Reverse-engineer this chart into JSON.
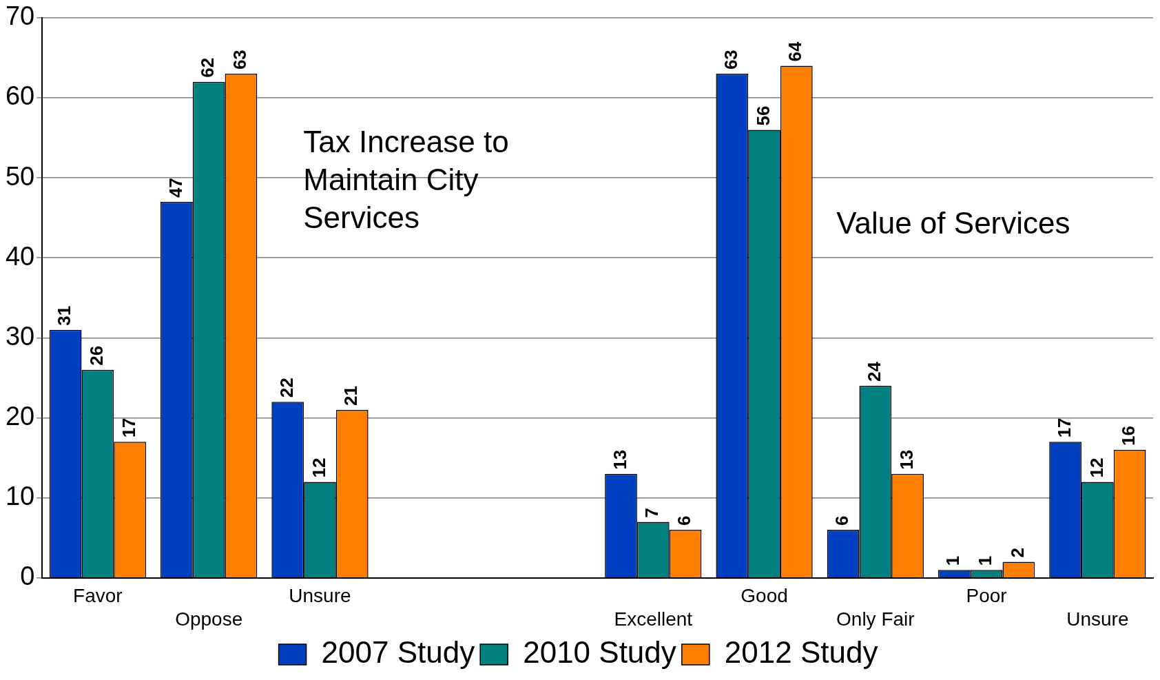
{
  "chart_data": {
    "type": "bar",
    "categories": [
      "Favor",
      "Oppose",
      "Unsure",
      null,
      null,
      "Excellent",
      "Good",
      "Only Fair",
      "Poor",
      "Unsure"
    ],
    "series": [
      {
        "name": "2007 Study",
        "color": "#0040c0",
        "values": [
          31,
          47,
          22,
          null,
          null,
          13,
          63,
          6,
          1,
          17
        ]
      },
      {
        "name": "2010 Study",
        "color": "#008080",
        "values": [
          26,
          62,
          12,
          null,
          null,
          7,
          56,
          24,
          1,
          12
        ]
      },
      {
        "name": "2012 Study",
        "color": "#ff8000",
        "values": [
          17,
          63,
          21,
          null,
          null,
          6,
          64,
          13,
          2,
          16
        ]
      }
    ],
    "ylim": [
      0,
      70
    ],
    "yticks": [
      0,
      10,
      20,
      30,
      40,
      50,
      60,
      70
    ],
    "grid": "y",
    "legend": "bottom",
    "data_labels": true,
    "annotations": [
      "Tax Increase to Maintain City Services",
      "Value of Services"
    ]
  }
}
